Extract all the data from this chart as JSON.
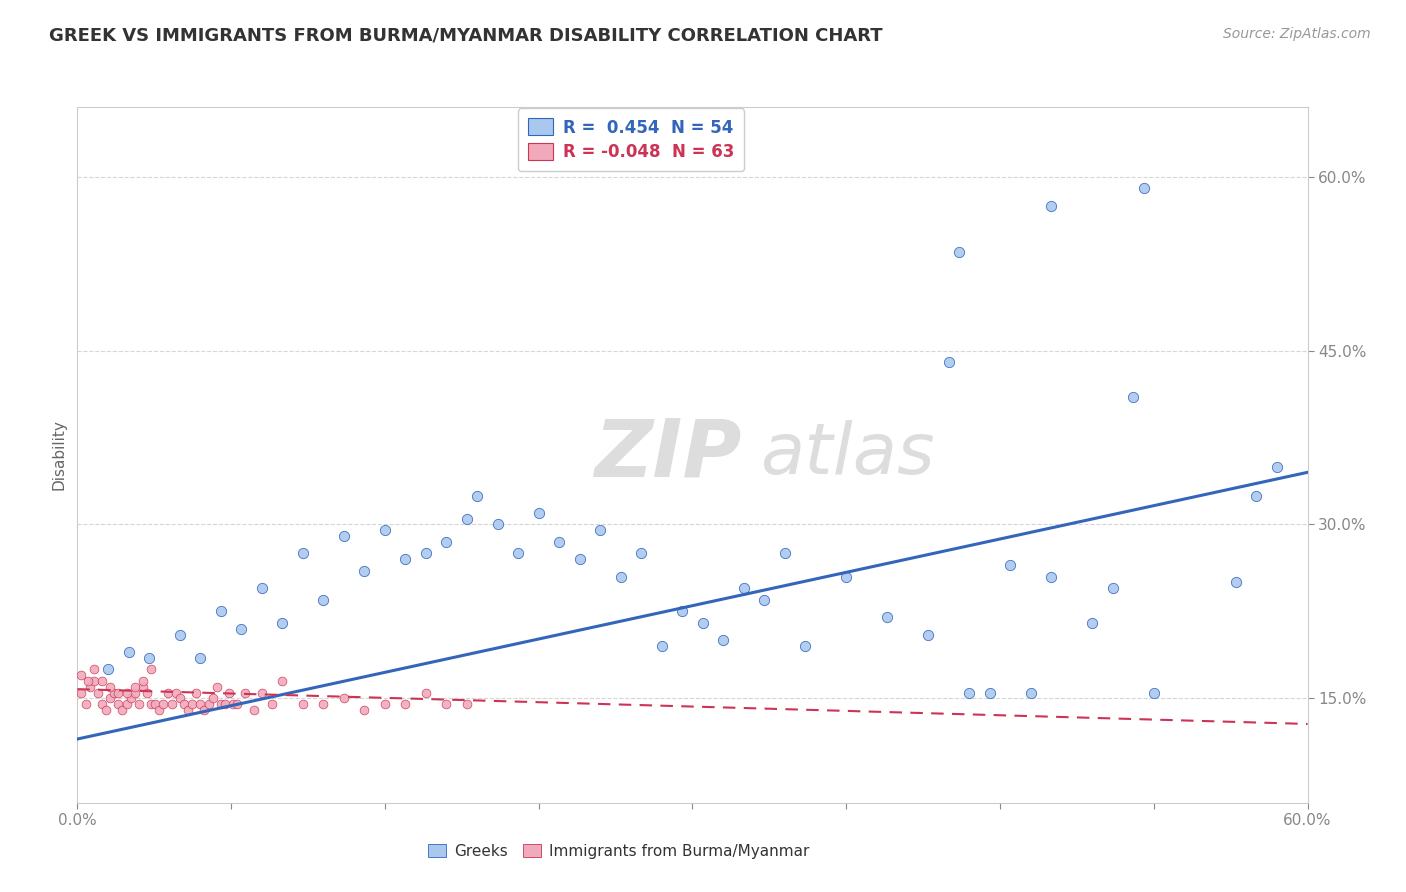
{
  "title": "GREEK VS IMMIGRANTS FROM BURMA/MYANMAR DISABILITY CORRELATION CHART",
  "source": "Source: ZipAtlas.com",
  "ylabel": "Disability",
  "legend_label1": "Greeks",
  "legend_label2": "Immigrants from Burma/Myanmar",
  "r1": 0.454,
  "n1": 54,
  "r2": -0.048,
  "n2": 63,
  "color_blue": "#aac8ee",
  "color_pink": "#f0aabb",
  "line_blue": "#3366bb",
  "line_pink": "#cc3355",
  "background": "#ffffff",
  "xlim": [
    0.0,
    0.6
  ],
  "ylim": [
    0.06,
    0.66
  ],
  "blue_dots": [
    [
      0.015,
      0.175
    ],
    [
      0.025,
      0.19
    ],
    [
      0.035,
      0.185
    ],
    [
      0.05,
      0.205
    ],
    [
      0.06,
      0.185
    ],
    [
      0.07,
      0.225
    ],
    [
      0.08,
      0.21
    ],
    [
      0.09,
      0.245
    ],
    [
      0.1,
      0.215
    ],
    [
      0.11,
      0.275
    ],
    [
      0.12,
      0.235
    ],
    [
      0.13,
      0.29
    ],
    [
      0.14,
      0.26
    ],
    [
      0.15,
      0.295
    ],
    [
      0.16,
      0.27
    ],
    [
      0.17,
      0.275
    ],
    [
      0.18,
      0.285
    ],
    [
      0.19,
      0.305
    ],
    [
      0.195,
      0.325
    ],
    [
      0.205,
      0.3
    ],
    [
      0.215,
      0.275
    ],
    [
      0.225,
      0.31
    ],
    [
      0.235,
      0.285
    ],
    [
      0.245,
      0.27
    ],
    [
      0.255,
      0.295
    ],
    [
      0.265,
      0.255
    ],
    [
      0.275,
      0.275
    ],
    [
      0.285,
      0.195
    ],
    [
      0.295,
      0.225
    ],
    [
      0.305,
      0.215
    ],
    [
      0.315,
      0.2
    ],
    [
      0.325,
      0.245
    ],
    [
      0.335,
      0.235
    ],
    [
      0.345,
      0.275
    ],
    [
      0.355,
      0.195
    ],
    [
      0.375,
      0.255
    ],
    [
      0.395,
      0.22
    ],
    [
      0.415,
      0.205
    ],
    [
      0.425,
      0.44
    ],
    [
      0.435,
      0.155
    ],
    [
      0.445,
      0.155
    ],
    [
      0.455,
      0.265
    ],
    [
      0.465,
      0.155
    ],
    [
      0.475,
      0.255
    ],
    [
      0.495,
      0.215
    ],
    [
      0.505,
      0.245
    ],
    [
      0.515,
      0.41
    ],
    [
      0.525,
      0.155
    ],
    [
      0.43,
      0.535
    ],
    [
      0.52,
      0.59
    ],
    [
      0.565,
      0.25
    ],
    [
      0.575,
      0.325
    ],
    [
      0.585,
      0.35
    ],
    [
      0.475,
      0.575
    ]
  ],
  "pink_dots": [
    [
      0.002,
      0.155
    ],
    [
      0.004,
      0.145
    ],
    [
      0.006,
      0.16
    ],
    [
      0.008,
      0.165
    ],
    [
      0.01,
      0.155
    ],
    [
      0.012,
      0.145
    ],
    [
      0.014,
      0.14
    ],
    [
      0.016,
      0.15
    ],
    [
      0.018,
      0.155
    ],
    [
      0.02,
      0.145
    ],
    [
      0.022,
      0.14
    ],
    [
      0.024,
      0.145
    ],
    [
      0.026,
      0.15
    ],
    [
      0.028,
      0.155
    ],
    [
      0.03,
      0.145
    ],
    [
      0.032,
      0.16
    ],
    [
      0.034,
      0.155
    ],
    [
      0.036,
      0.145
    ],
    [
      0.038,
      0.145
    ],
    [
      0.04,
      0.14
    ],
    [
      0.042,
      0.145
    ],
    [
      0.044,
      0.155
    ],
    [
      0.046,
      0.145
    ],
    [
      0.048,
      0.155
    ],
    [
      0.05,
      0.15
    ],
    [
      0.052,
      0.145
    ],
    [
      0.054,
      0.14
    ],
    [
      0.056,
      0.145
    ],
    [
      0.058,
      0.155
    ],
    [
      0.06,
      0.145
    ],
    [
      0.062,
      0.14
    ],
    [
      0.064,
      0.145
    ],
    [
      0.066,
      0.15
    ],
    [
      0.068,
      0.16
    ],
    [
      0.07,
      0.145
    ],
    [
      0.072,
      0.145
    ],
    [
      0.074,
      0.155
    ],
    [
      0.076,
      0.145
    ],
    [
      0.078,
      0.145
    ],
    [
      0.082,
      0.155
    ],
    [
      0.086,
      0.14
    ],
    [
      0.09,
      0.155
    ],
    [
      0.095,
      0.145
    ],
    [
      0.1,
      0.165
    ],
    [
      0.11,
      0.145
    ],
    [
      0.12,
      0.145
    ],
    [
      0.13,
      0.15
    ],
    [
      0.14,
      0.14
    ],
    [
      0.15,
      0.145
    ],
    [
      0.16,
      0.145
    ],
    [
      0.17,
      0.155
    ],
    [
      0.18,
      0.145
    ],
    [
      0.19,
      0.145
    ],
    [
      0.002,
      0.17
    ],
    [
      0.005,
      0.165
    ],
    [
      0.008,
      0.175
    ],
    [
      0.012,
      0.165
    ],
    [
      0.016,
      0.16
    ],
    [
      0.02,
      0.155
    ],
    [
      0.024,
      0.155
    ],
    [
      0.028,
      0.16
    ],
    [
      0.032,
      0.165
    ],
    [
      0.036,
      0.175
    ]
  ],
  "blue_line_x": [
    0.0,
    0.6
  ],
  "blue_line_y": [
    0.115,
    0.345
  ],
  "pink_line_x": [
    0.0,
    0.6
  ],
  "pink_line_y": [
    0.158,
    0.128
  ],
  "y_ticks": [
    0.15,
    0.3,
    0.45,
    0.6
  ],
  "y_tick_labels": [
    "15.0%",
    "30.0%",
    "45.0%",
    "60.0%"
  ]
}
